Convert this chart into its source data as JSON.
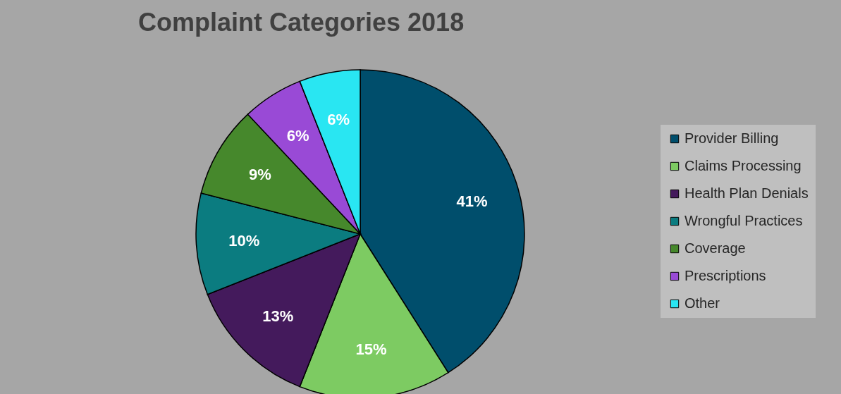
{
  "chart_data": {
    "type": "pie",
    "title": "Complaint Categories 2018",
    "categories": [
      "Provider Billing",
      "Claims Processing",
      "Health Plan Denials",
      "Wrongful Practices",
      "Coverage",
      "Prescriptions",
      "Other"
    ],
    "values": [
      41,
      15,
      13,
      10,
      9,
      6,
      6
    ],
    "colors": [
      "#004e6c",
      "#7dcb62",
      "#441a5c",
      "#0b7c80",
      "#46882c",
      "#994ad6",
      "#29e6f2"
    ],
    "value_labels": [
      "41%",
      "15%",
      "13%",
      "10%",
      "9%",
      "6%",
      "6%"
    ],
    "legend": "right"
  }
}
